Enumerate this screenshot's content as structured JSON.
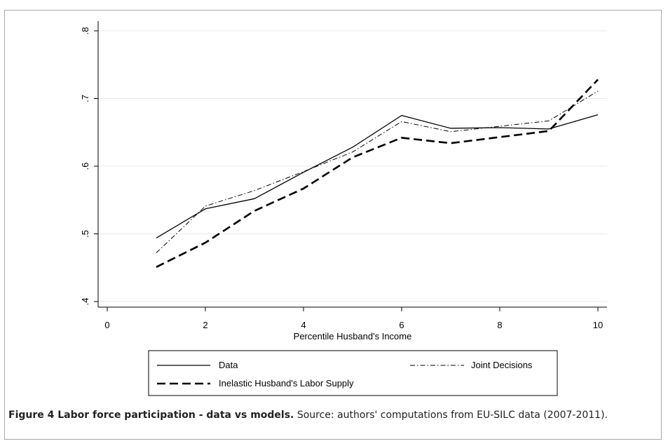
{
  "chart_data": {
    "type": "line",
    "xlabel": "Percentile Husband's Income",
    "ylabel": "",
    "xlim": [
      0,
      10
    ],
    "ylim": [
      0.4,
      0.8
    ],
    "xticks": [
      0,
      2,
      4,
      6,
      8,
      10
    ],
    "xtick_labels": [
      "0",
      "2",
      "4",
      "6",
      "8",
      "10"
    ],
    "yticks": [
      0.4,
      0.5,
      0.6,
      0.7,
      0.8
    ],
    "ytick_labels": [
      ".4",
      ".5",
      ".6",
      ".7",
      ".8"
    ],
    "grid": true,
    "legend_position": "bottom",
    "x": [
      1,
      2,
      3,
      4,
      5,
      6,
      7,
      8,
      9,
      10
    ],
    "series": [
      {
        "name": "Data",
        "style": "solid",
        "values": [
          0.494,
          0.537,
          0.552,
          0.591,
          0.628,
          0.675,
          0.656,
          0.657,
          0.655,
          0.676
        ]
      },
      {
        "name": "Joint Decisions",
        "style": "dash-dot",
        "values": [
          0.472,
          0.541,
          0.564,
          0.592,
          0.621,
          0.666,
          0.651,
          0.659,
          0.667,
          0.711
        ]
      },
      {
        "name": "Inelastic Husband's Labor Supply",
        "style": "dashed",
        "values": [
          0.451,
          0.487,
          0.534,
          0.567,
          0.613,
          0.642,
          0.634,
          0.643,
          0.652,
          0.728
        ]
      }
    ]
  },
  "caption": {
    "label": "Figure 4 Labor force participation - data vs models.",
    "text": "Source: authors' computations from EU-SILC data (2007-2011)."
  },
  "colors": {
    "frame_border": "#a9a9a9",
    "grid": "#e8e8e8",
    "line": "#000000"
  }
}
